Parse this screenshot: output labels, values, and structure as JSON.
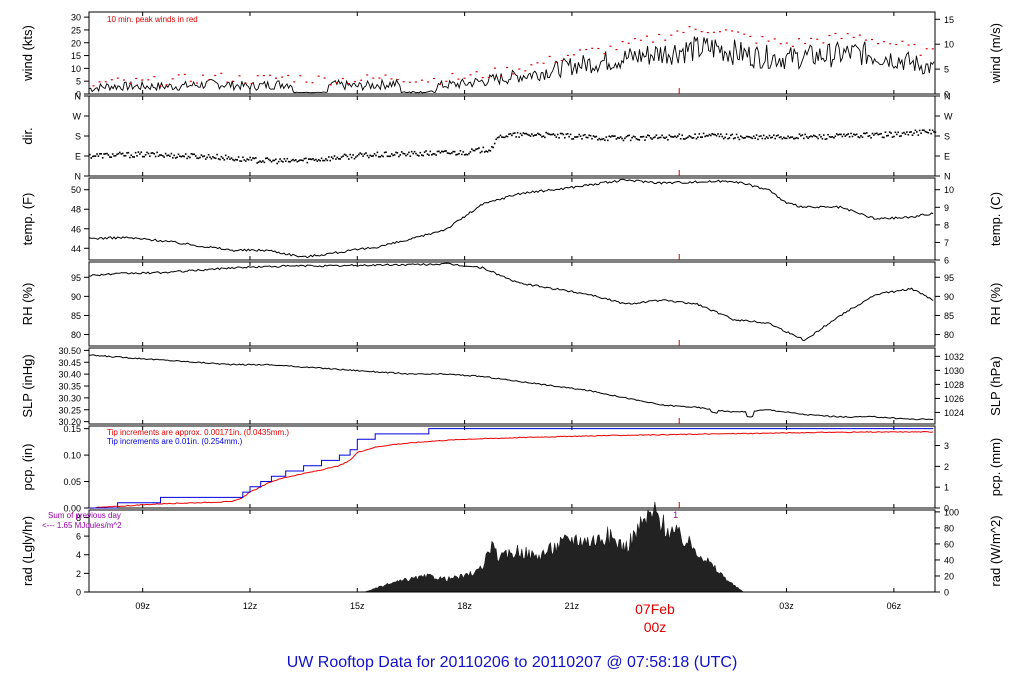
{
  "title": "UW Rooftop Data for 20110206  to  20110207 @ 07:58:18  (UTC)",
  "date_label": "07Feb",
  "date_sub": "00z",
  "colors": {
    "peak": "#dd0000",
    "rain_in": "#0000dd",
    "rain_mm": "#ee0000",
    "note": "#9900aa",
    "title": "#1111cc",
    "ink": "#000000"
  },
  "chart_data": [
    {
      "type": "line",
      "name": "wind",
      "ylabel": "wind (kts)",
      "ylabel_right": "wind (m/s)",
      "ylim": [
        0,
        32
      ],
      "yticks": [
        "0",
        "5",
        "10",
        "15",
        "20",
        "25",
        "30"
      ],
      "yticks_right": [
        "0",
        "5",
        "10",
        "15"
      ],
      "annotation": "10 min. peak winds in red",
      "x_hours": [
        7.5,
        8,
        9,
        10,
        11,
        12,
        13,
        14,
        15,
        16,
        17,
        18,
        19,
        20,
        21,
        22,
        23,
        24,
        25,
        26,
        27,
        28,
        29,
        30,
        31.1
      ],
      "mean_kts": [
        2,
        3,
        3,
        3,
        4,
        3,
        4,
        4,
        3,
        4,
        3,
        4,
        6,
        8,
        11,
        13,
        15,
        17,
        18,
        15,
        14,
        15,
        16,
        14,
        10
      ],
      "peak_kts": [
        3,
        4,
        4,
        5,
        6,
        5,
        6,
        5,
        5,
        6,
        5,
        6,
        8,
        11,
        15,
        17,
        20,
        24,
        25,
        21,
        19,
        21,
        22,
        19,
        15
      ]
    },
    {
      "type": "scatter",
      "name": "dir",
      "ylabel": "dir.",
      "yticks": [
        "N",
        "E",
        "S",
        "W",
        "N"
      ],
      "ylim": [
        0,
        360
      ],
      "x_hours": [
        7.5,
        9,
        10,
        11,
        12,
        13,
        14,
        15,
        16,
        17,
        18,
        18.7,
        19,
        20,
        21,
        22,
        23,
        24,
        25,
        26,
        27,
        28,
        29,
        30,
        31.1
      ],
      "deg": [
        95,
        100,
        95,
        90,
        75,
        70,
        80,
        95,
        100,
        105,
        110,
        125,
        185,
        190,
        180,
        175,
        175,
        180,
        185,
        175,
        180,
        180,
        185,
        190,
        205
      ]
    },
    {
      "type": "line",
      "name": "temp",
      "ylabel": "temp. (F)",
      "ylabel_right": "temp. (C)",
      "ylim": [
        42.8,
        51.2
      ],
      "yticks": [
        "44",
        "46",
        "48",
        "50"
      ],
      "yticks_right": [
        "6",
        "7",
        "8",
        "9",
        "10"
      ],
      "x_hours": [
        7.5,
        8.5,
        9.5,
        10.5,
        11.5,
        12.5,
        13.5,
        14.5,
        15.5,
        16.5,
        17.5,
        18.5,
        19.5,
        20.5,
        21.5,
        22.5,
        23.5,
        24.5,
        25.5,
        26.5,
        27,
        27.5,
        28.5,
        29.5,
        30.5,
        31.1
      ],
      "values": [
        45.0,
        45.1,
        44.8,
        44.3,
        43.8,
        43.8,
        43.1,
        43.6,
        44.1,
        44.9,
        46.0,
        48.5,
        49.6,
        50.0,
        50.5,
        51.0,
        50.7,
        50.8,
        50.9,
        50.0,
        48.6,
        48.2,
        48.2,
        47.0,
        47.2,
        47.6
      ]
    },
    {
      "type": "line",
      "name": "rh",
      "ylabel": "RH (%)",
      "ylabel_right": "RH (%)",
      "ylim": [
        77,
        99
      ],
      "yticks": [
        "80",
        "85",
        "90",
        "95"
      ],
      "x_hours": [
        7.5,
        8.5,
        9.5,
        10.5,
        11.5,
        12.5,
        13.5,
        14.5,
        15.5,
        16.5,
        17.5,
        18.5,
        19.5,
        20.5,
        21.5,
        22.5,
        23.5,
        24.5,
        25.5,
        26.5,
        27.5,
        28.5,
        29.5,
        30.5,
        31.1
      ],
      "values": [
        95.5,
        96.0,
        96.2,
        96.8,
        97.5,
        97.8,
        98.0,
        98.0,
        98.2,
        98.3,
        98.5,
        97.5,
        93.5,
        92.0,
        90.5,
        88.0,
        89.0,
        88.0,
        84.0,
        83.0,
        78.5,
        85.0,
        90.5,
        92.0,
        89.0
      ]
    },
    {
      "type": "line",
      "name": "slp",
      "ylabel": "SLP (inHg)",
      "ylabel_right": "SLP (hPa)",
      "ylim": [
        30.19,
        30.51
      ],
      "yticks": [
        "30.20",
        "30.25",
        "30.30",
        "30.35",
        "30.40",
        "30.45",
        "30.50"
      ],
      "yticks_right": [
        "1024",
        "1026",
        "1028",
        "1030",
        "1032"
      ],
      "x_hours": [
        7.5,
        8.5,
        9.5,
        10.5,
        11.5,
        12.5,
        13.5,
        14.5,
        15.5,
        16.5,
        17.5,
        18.5,
        19.5,
        20.5,
        21.5,
        22.5,
        23.5,
        24.5,
        25.5,
        26.5,
        27.5,
        28.5,
        29.5,
        30.5,
        31.1
      ],
      "values": [
        30.48,
        30.47,
        30.46,
        30.45,
        30.44,
        30.44,
        30.43,
        30.42,
        30.41,
        30.4,
        30.4,
        30.39,
        30.37,
        30.35,
        30.33,
        30.3,
        30.27,
        30.26,
        30.24,
        30.25,
        30.23,
        30.22,
        30.22,
        30.21,
        30.21
      ]
    },
    {
      "type": "line",
      "name": "pcp",
      "ylabel": "pcp. (in)",
      "ylabel_right": "pcp. (mm)",
      "ylim": [
        0,
        0.155
      ],
      "yticks": [
        "0.00",
        "0.05",
        "0.10",
        "0.15"
      ],
      "yticks_right": [
        "0",
        "1",
        "2",
        "3"
      ],
      "annotation_red": "Tip increments are approx. 0.00171in. (0.0435mm.)",
      "annotation_blue": "Tip increments are 0.01in. (0.254mm.)",
      "x_hours": [
        7.5,
        8.3,
        9.5,
        11.5,
        11.8,
        12,
        12.3,
        12.6,
        13,
        13.5,
        14,
        14.5,
        14.8,
        15,
        15.5,
        16,
        17,
        18,
        20,
        22,
        24,
        26,
        28,
        31.1
      ],
      "inches_red": [
        0.0,
        0.003,
        0.008,
        0.012,
        0.02,
        0.03,
        0.04,
        0.05,
        0.058,
        0.065,
        0.072,
        0.08,
        0.09,
        0.105,
        0.115,
        0.12,
        0.126,
        0.13,
        0.134,
        0.137,
        0.139,
        0.141,
        0.143,
        0.144
      ],
      "inches_blue": [
        0.0,
        0.01,
        0.02,
        0.02,
        0.03,
        0.04,
        0.05,
        0.06,
        0.07,
        0.08,
        0.09,
        0.1,
        0.11,
        0.13,
        0.14,
        0.14,
        0.15,
        0.15,
        0.15,
        0.15,
        0.15,
        0.15,
        0.15,
        0.15
      ]
    },
    {
      "type": "area",
      "name": "rad",
      "ylabel": "rad (Lgly/hr)",
      "ylabel_right": "rad (W/m^2)",
      "ylim": [
        0,
        8.8
      ],
      "yticks": [
        "0",
        "2",
        "4",
        "6",
        "8"
      ],
      "yticks_right": [
        "0",
        "20",
        "40",
        "60",
        "80",
        "100"
      ],
      "note_line1": "Sum of previous day",
      "note_line2": "<--- 1.65 MJoules/m^2",
      "marker": "1",
      "x_hours": [
        15.2,
        16,
        16.5,
        17,
        17.5,
        18,
        18.5,
        18.7,
        19,
        19.5,
        20,
        20.5,
        21,
        21.5,
        22,
        22.5,
        23,
        23.3,
        23.6,
        24,
        24.5,
        25,
        25.5,
        25.8
      ],
      "values": [
        0,
        1.0,
        1.4,
        1.7,
        1.4,
        1.7,
        2.5,
        5.0,
        3.6,
        4.5,
        3.8,
        4.8,
        5.8,
        5.5,
        6.0,
        4.8,
        7.5,
        8.6,
        7.0,
        6.0,
        4.5,
        2.5,
        0.8,
        0
      ]
    }
  ],
  "x_axis": {
    "range_hours": [
      7.5,
      31.15
    ],
    "ticks": [
      {
        "h": 9,
        "label": "09z"
      },
      {
        "h": 12,
        "label": "12z"
      },
      {
        "h": 15,
        "label": "15z"
      },
      {
        "h": 18,
        "label": "18z"
      },
      {
        "h": 21,
        "label": "21z"
      },
      {
        "h": 27,
        "label": "03z"
      },
      {
        "h": 30,
        "label": "06z"
      }
    ],
    "day_tick_hours": 24
  }
}
